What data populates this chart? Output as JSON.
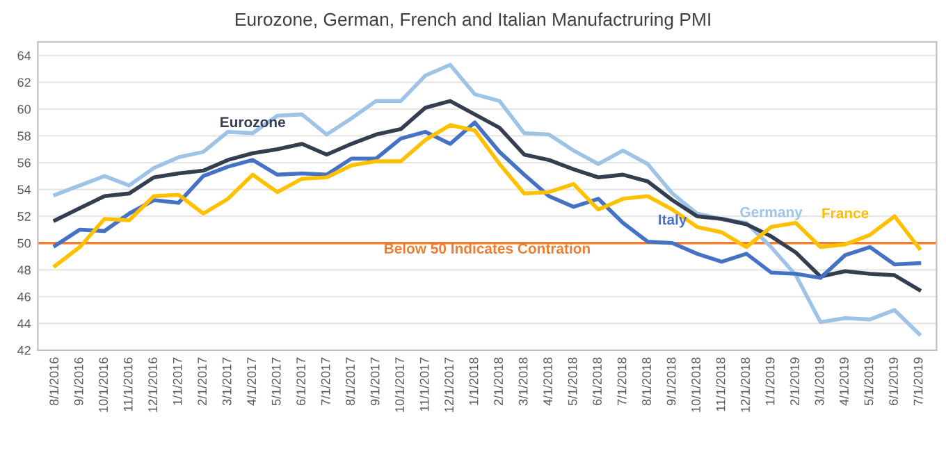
{
  "chart_data": {
    "type": "line",
    "title": "Eurozone, German, French and Italian Manufactruring PMI",
    "categories": [
      "8/1/2016",
      "9/1/2016",
      "10/1/2016",
      "11/1/2016",
      "12/1/2016",
      "1/1/2017",
      "2/1/2017",
      "3/1/2017",
      "4/1/2017",
      "5/1/2017",
      "6/1/2017",
      "7/1/2017",
      "8/1/2017",
      "9/1/2017",
      "10/1/2017",
      "11/1/2017",
      "12/1/2017",
      "1/1/2018",
      "2/1/2018",
      "3/1/2018",
      "4/1/2018",
      "5/1/2018",
      "6/1/2018",
      "7/1/2018",
      "8/1/2018",
      "9/1/2018",
      "10/1/2018",
      "11/1/2018",
      "12/1/2018",
      "1/1/2019",
      "2/1/2019",
      "3/1/2019",
      "4/1/2019",
      "5/1/2019",
      "6/1/2019",
      "7/1/2019"
    ],
    "series": [
      {
        "name": "Germany",
        "color": "#9dc3e6",
        "values": [
          53.6,
          54.3,
          55.0,
          54.3,
          55.6,
          56.4,
          56.8,
          58.3,
          58.2,
          59.5,
          59.6,
          58.1,
          59.3,
          60.6,
          60.6,
          62.5,
          63.3,
          61.1,
          60.6,
          58.2,
          58.1,
          56.9,
          55.9,
          56.9,
          55.9,
          53.7,
          52.2,
          51.8,
          51.5,
          49.7,
          47.6,
          44.1,
          44.4,
          44.3,
          45.0,
          43.2
        ]
      },
      {
        "name": "Eurozone",
        "color": "#333f50",
        "values": [
          51.7,
          52.6,
          53.5,
          53.7,
          54.9,
          55.2,
          55.4,
          56.2,
          56.7,
          57.0,
          57.4,
          56.6,
          57.4,
          58.1,
          58.5,
          60.1,
          60.6,
          59.6,
          58.6,
          56.6,
          56.2,
          55.5,
          54.9,
          55.1,
          54.6,
          53.2,
          52.0,
          51.8,
          51.4,
          50.5,
          49.3,
          47.5,
          47.9,
          47.7,
          47.6,
          46.5
        ]
      },
      {
        "name": "Italy",
        "color": "#4472c4",
        "values": [
          49.8,
          51.0,
          50.9,
          52.2,
          53.2,
          53.0,
          55.0,
          55.7,
          56.2,
          55.1,
          55.2,
          55.1,
          56.3,
          56.3,
          57.8,
          58.3,
          57.4,
          59.0,
          56.8,
          55.1,
          53.5,
          52.7,
          53.3,
          51.5,
          50.1,
          50.0,
          49.2,
          48.6,
          49.2,
          47.8,
          47.7,
          47.4,
          49.1,
          49.7,
          48.4,
          48.5
        ]
      },
      {
        "name": "France",
        "color": "#ffc000",
        "values": [
          48.3,
          49.7,
          51.8,
          51.7,
          53.5,
          53.6,
          52.2,
          53.3,
          55.1,
          53.8,
          54.8,
          54.9,
          55.8,
          56.1,
          56.1,
          57.7,
          58.8,
          58.4,
          55.9,
          53.7,
          53.8,
          54.4,
          52.5,
          53.3,
          53.5,
          52.5,
          51.2,
          50.8,
          49.7,
          51.2,
          51.5,
          49.7,
          49.9,
          50.6,
          52.0,
          49.6
        ]
      }
    ],
    "ylim": [
      42,
      65
    ],
    "yticks": [
      42,
      44,
      46,
      48,
      50,
      52,
      54,
      56,
      58,
      60,
      62,
      64
    ],
    "grid": "y",
    "legend": false,
    "marker": "none",
    "line_style": "solid",
    "ref_lines": [
      {
        "axis": "y",
        "value": 50,
        "label": "Below 50 Indicates Contration",
        "color": "#ed7d31"
      }
    ]
  }
}
